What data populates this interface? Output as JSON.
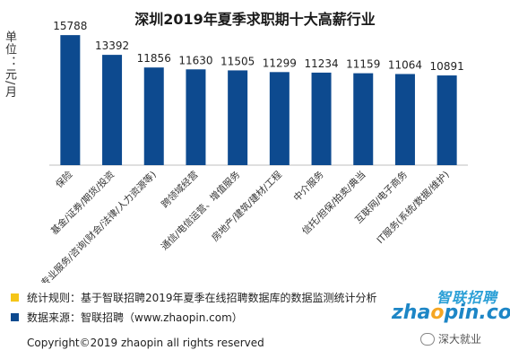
{
  "chart_data": {
    "type": "bar",
    "title": "深圳2019年夏季求职期十大高薪行业",
    "ylabel": "单位：元/月",
    "xlabel": "",
    "ylim": [
      0,
      17000
    ],
    "grid": false,
    "categories": [
      "保险",
      "基金/证券/期货/投资",
      "专业服务/咨询(财会/法律/人力资源等)",
      "跨领域经营",
      "通信/电信运营、增值服务",
      "房地产/建筑/建材/工程",
      "中介服务",
      "信托/担保/拍卖/典当",
      "互联网/电子商务",
      "IT服务(系统/数据/维护)"
    ],
    "values": [
      15788,
      13392,
      11856,
      11630,
      11505,
      11299,
      11234,
      11159,
      11064,
      10891
    ],
    "value_labels": [
      "15788",
      "13392",
      "11856",
      "11630",
      "11505",
      "11299",
      "11234",
      "11159",
      "11064",
      "10891"
    ],
    "bar_color": "#0d4a8f"
  },
  "footnotes": {
    "rule_text": "统计规则：基于智联招聘2019年夏季在线招聘数据库的数据监测统计分析",
    "rule_color": "#f5c518",
    "source_text": "数据来源：智联招聘（www.zhaopin.com）",
    "source_color": "#0d4a8f"
  },
  "copyright": "Copyright©2019 zhaopin all rights reserved",
  "logo": {
    "cn": "智联招聘",
    "en_prefix": "zha",
    "en_dot": "o",
    "en_suffix": "pin.com"
  },
  "watermark": "深大就业"
}
